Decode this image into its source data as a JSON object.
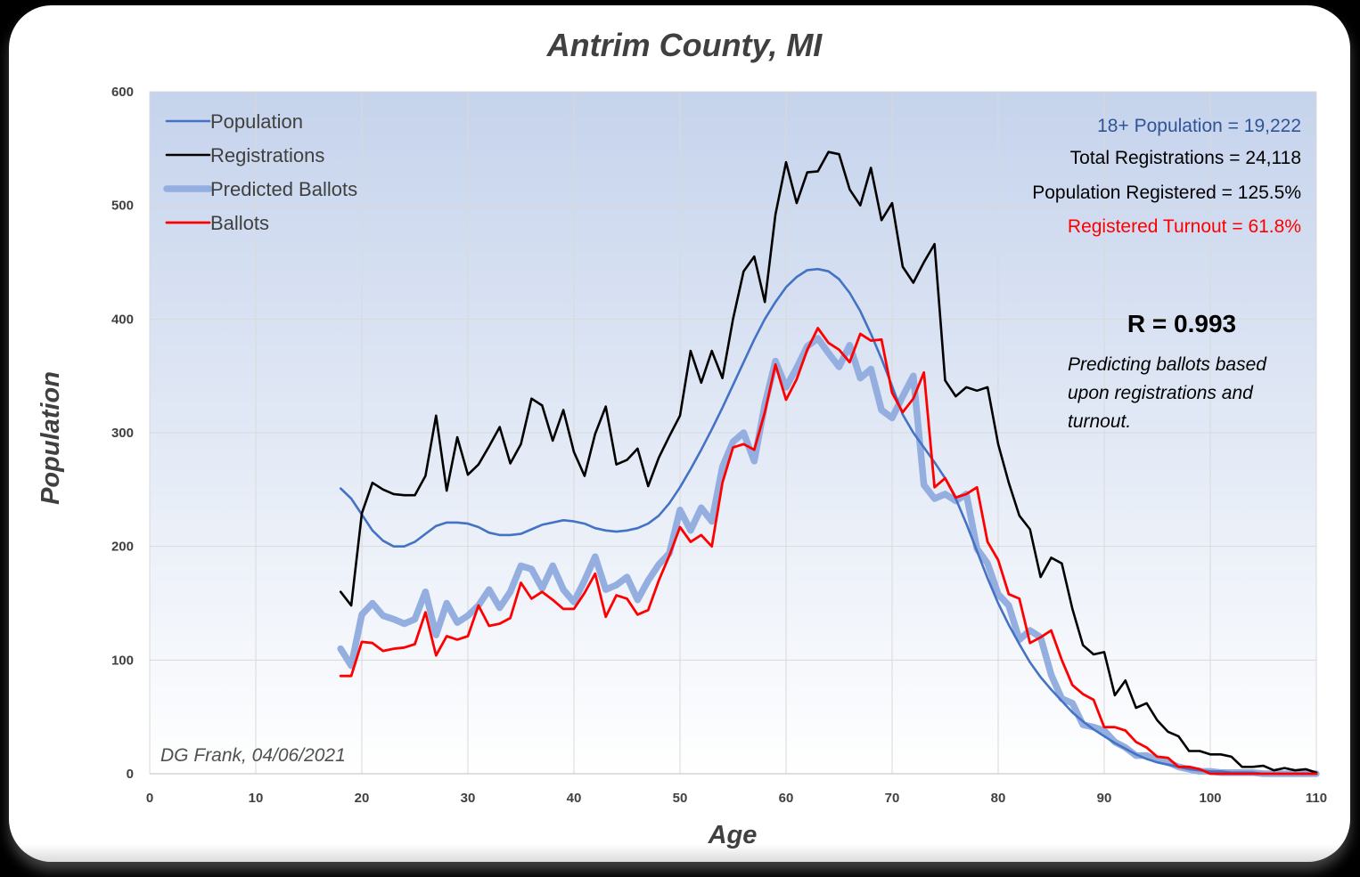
{
  "chart_data": {
    "type": "line",
    "title": "Antrim County, MI",
    "xlabel": "Age",
    "ylabel": "Population",
    "xlim": [
      0,
      110
    ],
    "ylim": [
      0,
      600
    ],
    "x_ticks": [
      0,
      10,
      20,
      30,
      40,
      50,
      60,
      70,
      80,
      90,
      100,
      110
    ],
    "y_ticks": [
      0,
      100,
      200,
      300,
      400,
      500,
      600
    ],
    "grid": true,
    "legend_placement": "top-left",
    "x": [
      18,
      19,
      20,
      21,
      22,
      23,
      24,
      25,
      26,
      27,
      28,
      29,
      30,
      31,
      32,
      33,
      34,
      35,
      36,
      37,
      38,
      39,
      40,
      41,
      42,
      43,
      44,
      45,
      46,
      47,
      48,
      49,
      50,
      51,
      52,
      53,
      54,
      55,
      56,
      57,
      58,
      59,
      60,
      61,
      62,
      63,
      64,
      65,
      66,
      67,
      68,
      69,
      70,
      71,
      72,
      73,
      74,
      75,
      76,
      77,
      78,
      79,
      80,
      81,
      82,
      83,
      84,
      85,
      86,
      87,
      88,
      89,
      90,
      91,
      92,
      93,
      94,
      95,
      96,
      97,
      98,
      99,
      100,
      101,
      102,
      103,
      104,
      105,
      106,
      107,
      108,
      109,
      110
    ],
    "series": [
      {
        "name": "Population",
        "color": "#4472C4",
        "values": [
          251,
          242,
          228,
          214,
          205,
          200,
          200,
          204,
          211,
          218,
          221,
          221,
          220,
          217,
          212,
          210,
          210,
          211,
          215,
          219,
          221,
          223,
          222,
          220,
          216,
          214,
          213,
          214,
          216,
          220,
          227,
          238,
          252,
          268,
          285,
          303,
          322,
          342,
          362,
          382,
          400,
          415,
          428,
          437,
          443,
          444,
          442,
          435,
          423,
          407,
          387,
          365,
          341,
          316,
          300,
          287,
          274,
          260,
          242,
          220,
          196,
          172,
          150,
          131,
          114,
          98,
          85,
          74,
          64,
          54,
          46,
          39,
          33,
          27,
          22,
          17,
          13,
          10,
          8,
          6,
          4,
          3,
          2,
          2,
          1,
          1,
          1,
          0,
          0,
          0,
          0,
          0,
          0
        ]
      },
      {
        "name": "Registrations",
        "color": "#000000",
        "values": [
          160,
          148,
          229,
          256,
          250,
          246,
          245,
          245,
          262,
          315,
          249,
          296,
          263,
          272,
          288,
          305,
          273,
          290,
          330,
          324,
          293,
          320,
          283,
          262,
          299,
          323,
          272,
          276,
          286,
          253,
          278,
          297,
          315,
          372,
          344,
          372,
          348,
          400,
          442,
          455,
          415,
          492,
          538,
          502,
          529,
          530,
          547,
          545,
          514,
          500,
          533,
          487,
          502,
          446,
          432,
          450,
          466,
          346,
          332,
          340,
          337,
          340,
          290,
          256,
          227,
          215,
          173,
          190,
          185,
          145,
          113,
          105,
          107,
          69,
          82,
          58,
          62,
          47,
          37,
          33,
          20,
          20,
          17,
          17,
          15,
          6,
          6,
          7,
          3,
          5,
          3,
          4,
          1
        ]
      },
      {
        "name": "Predicted Ballots",
        "color": "#94AEE0",
        "values": [
          110,
          95,
          140,
          150,
          139,
          136,
          132,
          136,
          160,
          122,
          150,
          133,
          139,
          148,
          162,
          146,
          160,
          183,
          180,
          163,
          183,
          162,
          151,
          170,
          191,
          162,
          166,
          173,
          153,
          170,
          184,
          194,
          232,
          214,
          234,
          222,
          270,
          292,
          300,
          275,
          325,
          363,
          340,
          357,
          376,
          383,
          370,
          358,
          377,
          348,
          356,
          320,
          313,
          332,
          350,
          254,
          242,
          246,
          240,
          246,
          198,
          185,
          158,
          148,
          118,
          126,
          120,
          87,
          66,
          62,
          43,
          41,
          38,
          28,
          23,
          16,
          16,
          12,
          10,
          6,
          4,
          2,
          2,
          1,
          1,
          1,
          1,
          0,
          0,
          0,
          0,
          0,
          0
        ]
      },
      {
        "name": "Ballots",
        "color": "#FF0000",
        "values": [
          86,
          86,
          116,
          115,
          108,
          110,
          111,
          114,
          142,
          104,
          121,
          118,
          121,
          148,
          130,
          132,
          137,
          168,
          154,
          160,
          153,
          145,
          145,
          159,
          176,
          138,
          157,
          154,
          140,
          144,
          170,
          192,
          217,
          204,
          210,
          200,
          256,
          287,
          290,
          285,
          318,
          360,
          329,
          347,
          373,
          392,
          379,
          373,
          362,
          387,
          381,
          382,
          335,
          318,
          330,
          353,
          252,
          260,
          243,
          246,
          252,
          204,
          188,
          158,
          154,
          115,
          120,
          126,
          100,
          78,
          70,
          65,
          41,
          41,
          38,
          28,
          23,
          15,
          14,
          6,
          6,
          4,
          0,
          0,
          0,
          0,
          0,
          0,
          0,
          0,
          0,
          0,
          0
        ]
      }
    ],
    "annotations": {
      "population_18_plus": "18+ Population = 19,222",
      "total_registrations": "Total Registrations = 24,118",
      "population_registered": "Population Registered = 125.5%",
      "registered_turnout": "Registered Turnout = 61.8%",
      "r_value": "R = 0.993",
      "note_line1": "Predicting ballots based",
      "note_line2": "upon registrations and",
      "note_line3": "turnout.",
      "credit": "DG Frank, 04/06/2021"
    },
    "colors": {
      "plot_bg_top": "#C5D3EC",
      "plot_bg_bottom": "#FFFFFF",
      "population_text": "#2F5597",
      "turnout_text": "#FF0000"
    }
  }
}
